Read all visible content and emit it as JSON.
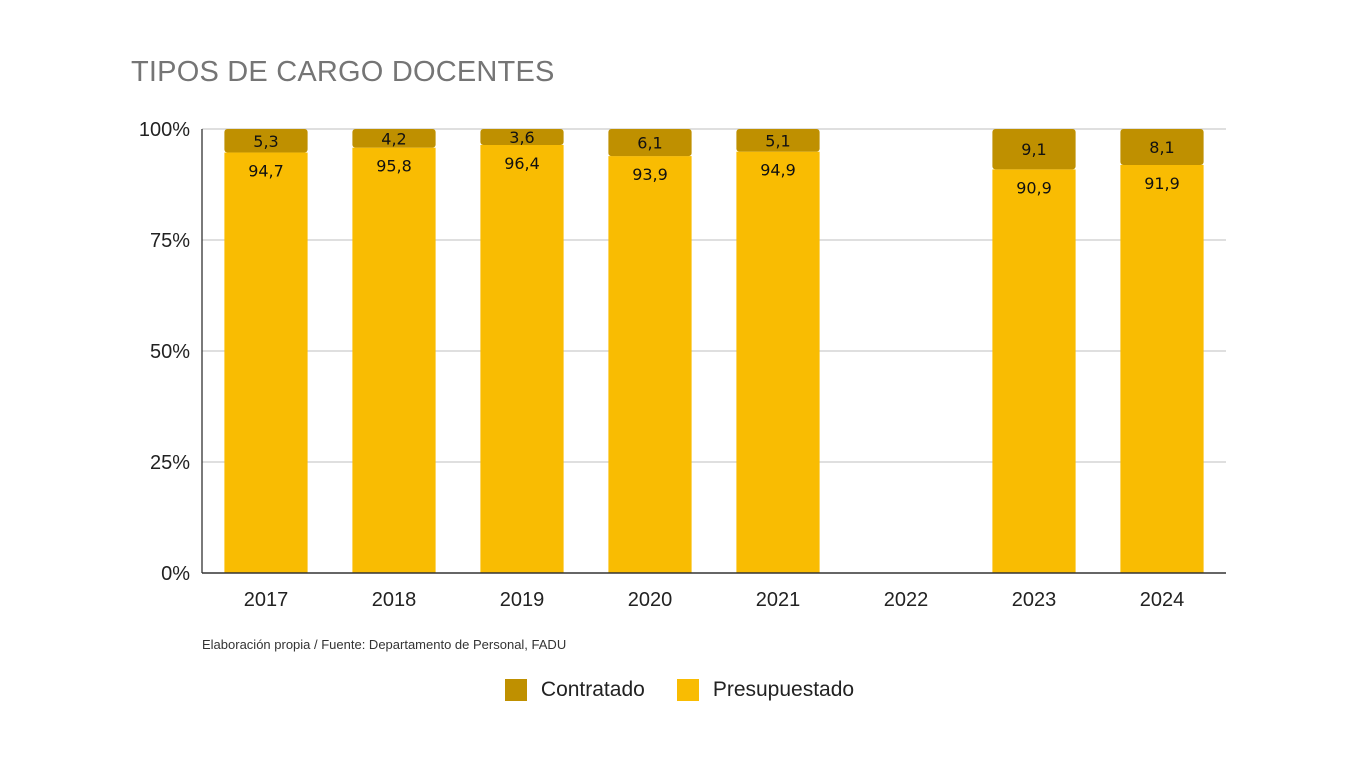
{
  "title": "TIPOS DE CARGO DOCENTES",
  "source": "Elaboración propia / Fuente: Departamento de Personal, FADU",
  "chart_data": {
    "type": "bar",
    "stacked": true,
    "percent": true,
    "title": "TIPOS DE CARGO DOCENTES",
    "categories": [
      "2017",
      "2018",
      "2019",
      "2020",
      "2021",
      "2022",
      "2023",
      "2024"
    ],
    "series": [
      {
        "name": "Presupuestado",
        "color": "#f9bc02",
        "values": [
          94.7,
          95.8,
          96.4,
          93.9,
          94.9,
          null,
          90.9,
          91.9
        ],
        "labels": [
          "94,7",
          "95,8",
          "96,4",
          "93,9",
          "94,9",
          "",
          "90,9",
          "91,9"
        ]
      },
      {
        "name": "Contratado",
        "color": "#bf9000",
        "values": [
          5.3,
          4.2,
          3.6,
          6.1,
          5.1,
          null,
          9.1,
          8.1
        ],
        "labels": [
          "5,3",
          "4,2",
          "3,6",
          "6,1",
          "5,1",
          "",
          "9,1",
          "8,1"
        ]
      }
    ],
    "yticks": [
      "0%",
      "25%",
      "50%",
      "75%",
      "100%"
    ],
    "ylim": [
      0,
      100
    ],
    "grid": true,
    "legend": "bottom"
  },
  "legend": [
    {
      "name": "Contratado",
      "color": "#bf9000"
    },
    {
      "name": "Presupuestado",
      "color": "#f9bc02"
    }
  ]
}
